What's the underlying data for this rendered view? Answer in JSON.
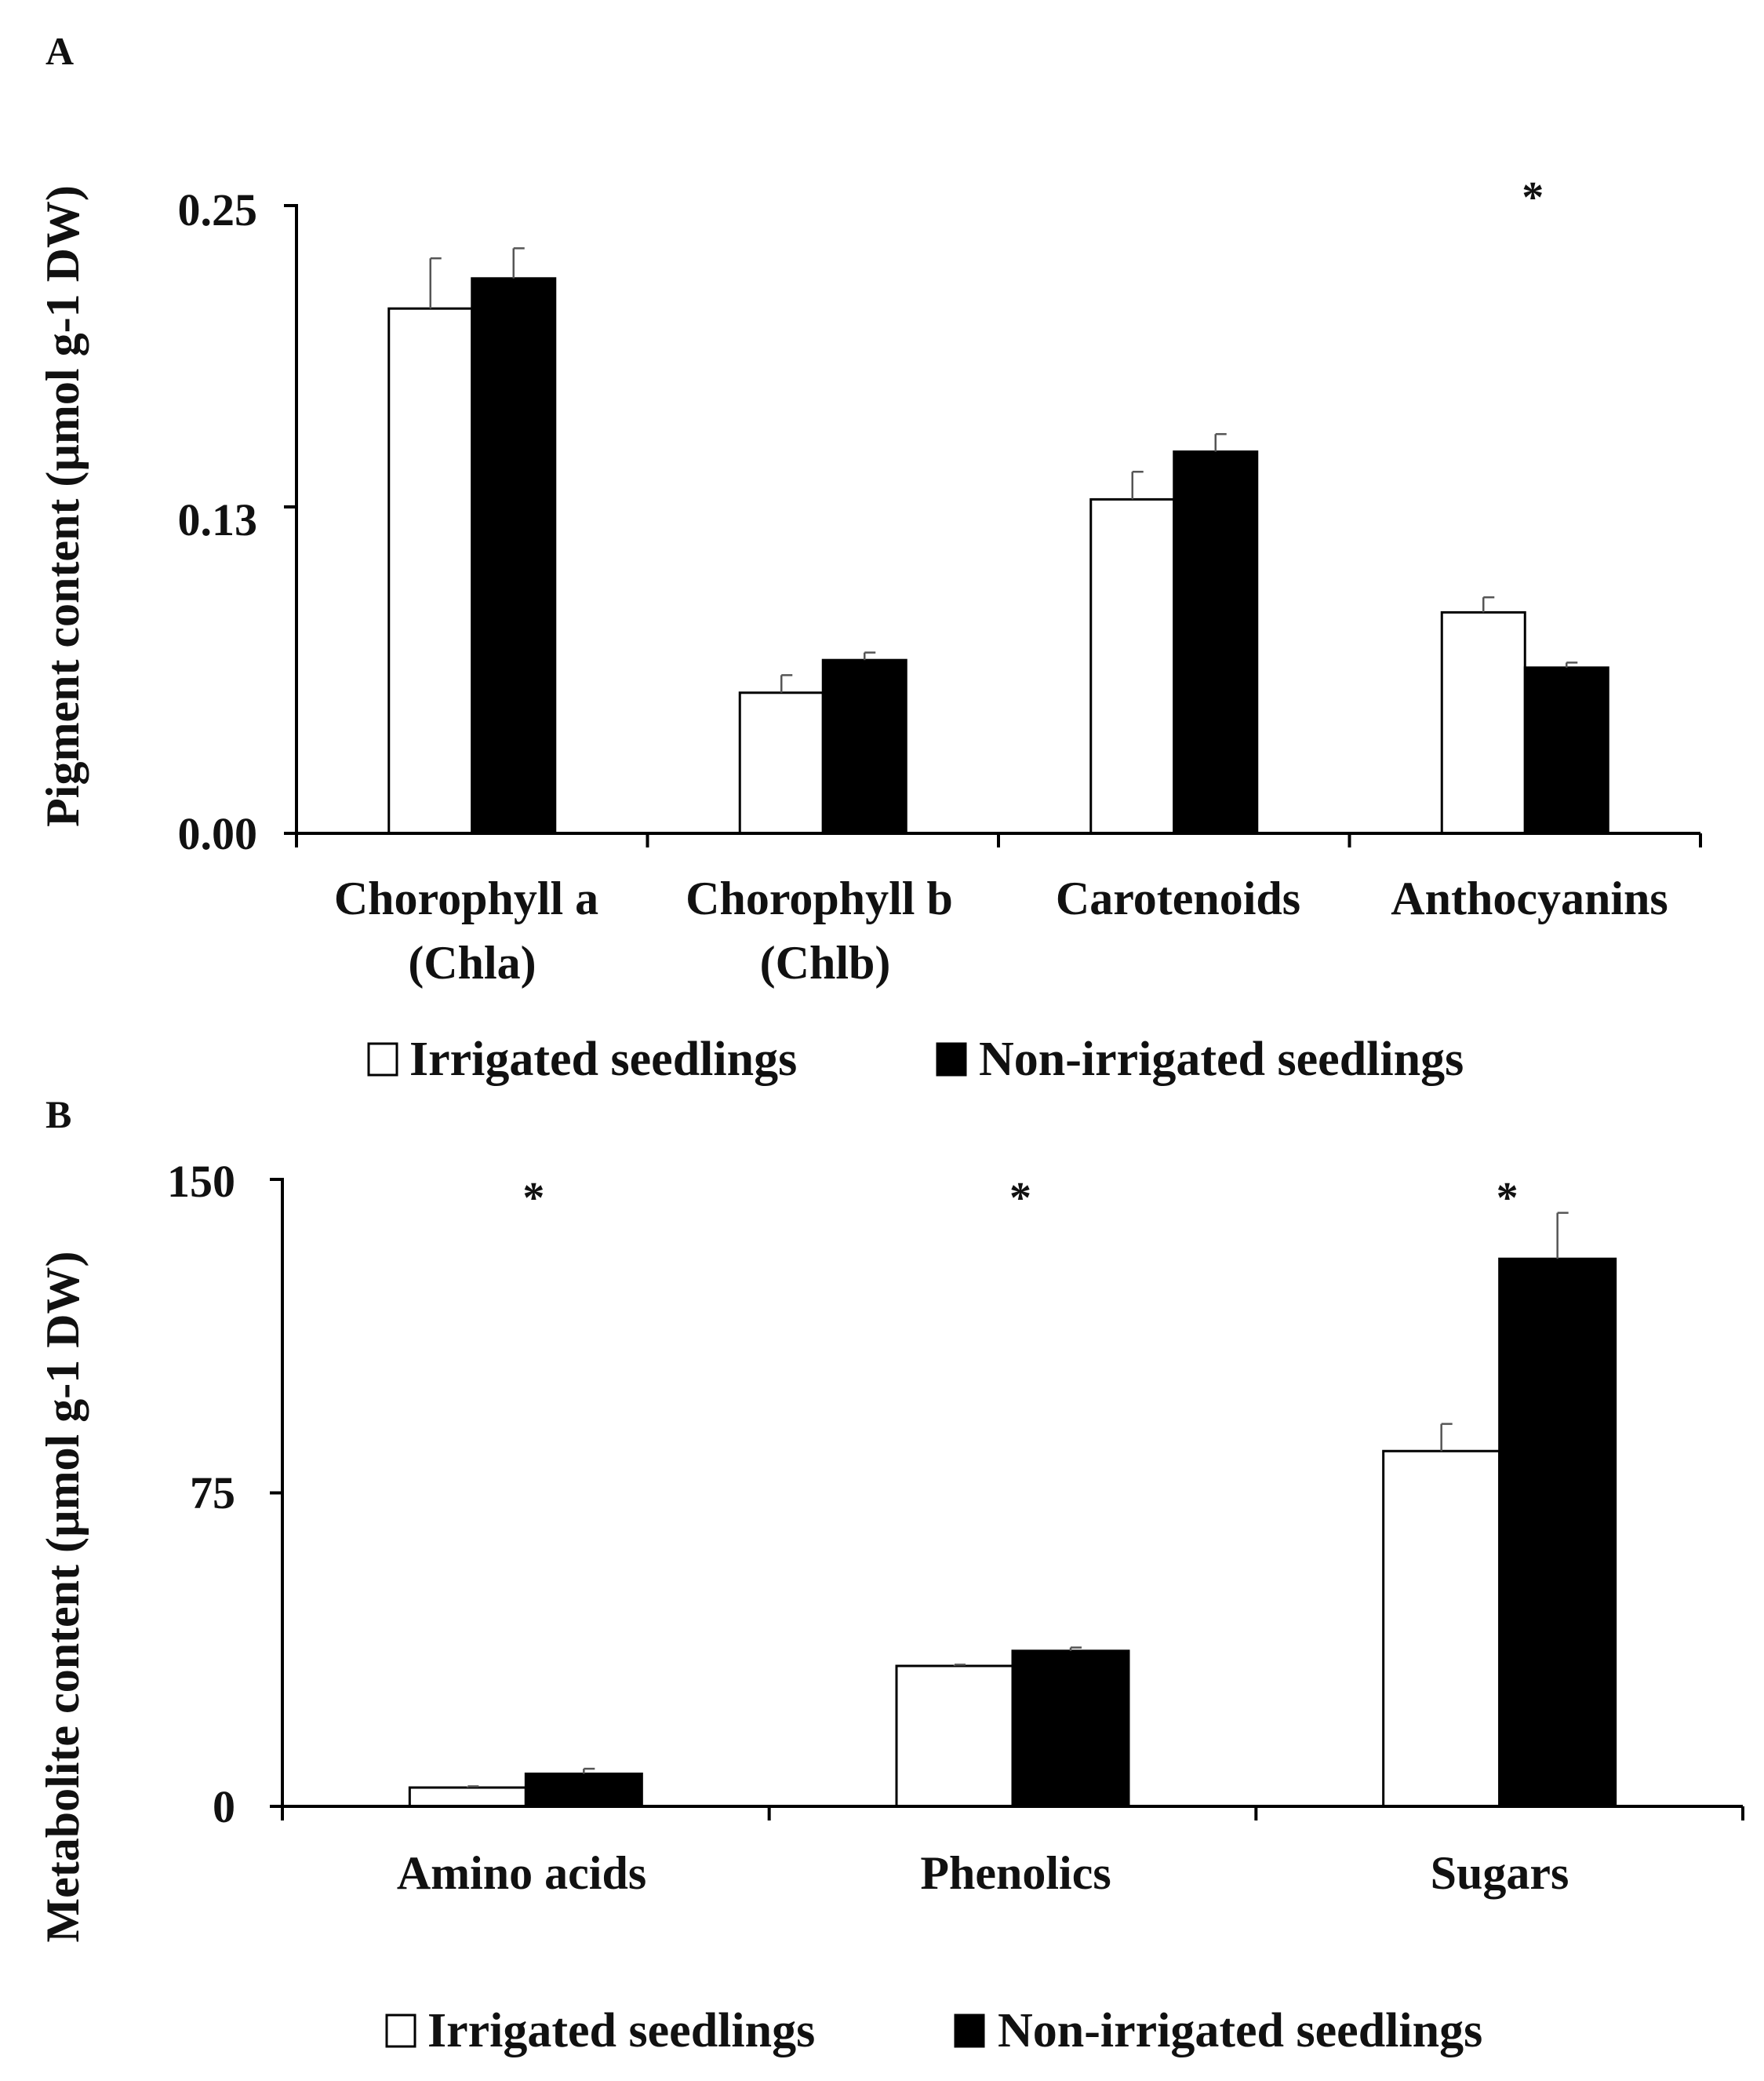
{
  "colors": {
    "irrigated_fill": "#ffffff",
    "non_irrigated_fill": "#000000",
    "stroke": "#000000"
  },
  "chart_data": [
    {
      "panel": "A",
      "type": "bar",
      "ylabel": "Pigment content (µmol g-1 DW)",
      "ylim": [
        0,
        0.25
      ],
      "yticks": [
        0,
        0.13,
        0.25
      ],
      "ytick_labels": [
        "0.00",
        "0.13",
        "0.25"
      ],
      "categories": [
        [
          "Chorophyll a",
          "(Chla)"
        ],
        [
          "Chorophyll b",
          "(Chlb)"
        ],
        [
          "Carotenoids"
        ],
        [
          "Anthocyanins"
        ]
      ],
      "series": [
        {
          "name": "Irrigated seedlings",
          "values": [
            0.209,
            0.056,
            0.133,
            0.088
          ],
          "errors": [
            0.02,
            0.007,
            0.011,
            0.006
          ]
        },
        {
          "name": "Non-irrigated seedlings",
          "values": [
            0.221,
            0.069,
            0.152,
            0.066
          ],
          "errors": [
            0.012,
            0.003,
            0.007,
            0.002
          ]
        }
      ],
      "significance": [
        "",
        "",
        "",
        "*"
      ],
      "legend": [
        "Irrigated seedlings",
        "Non-irrigated seedlings"
      ],
      "legend_position": "bottom"
    },
    {
      "panel": "B",
      "type": "bar",
      "ylabel": "Metabolite content (µmol g-1 DW)",
      "ylim": [
        0,
        150
      ],
      "yticks": [
        0,
        75,
        150
      ],
      "ytick_labels": [
        "0",
        "75",
        "150"
      ],
      "categories": [
        [
          "Amino acids"
        ],
        [
          "Phenolics"
        ],
        [
          "Sugars"
        ]
      ],
      "series": [
        {
          "name": "Irrigated seedlings",
          "values": [
            4.5,
            33.6,
            85
          ],
          "errors": [
            0.3,
            0.3,
            6.5
          ]
        },
        {
          "name": "Non-irrigated seedlings",
          "values": [
            7.8,
            37.2,
            131
          ],
          "errors": [
            1.2,
            0.8,
            11
          ]
        }
      ],
      "significance": [
        "*",
        "*",
        "*"
      ],
      "legend": [
        "Irrigated seedlings",
        "Non-irrigated seedlings"
      ],
      "legend_position": "bottom"
    }
  ]
}
